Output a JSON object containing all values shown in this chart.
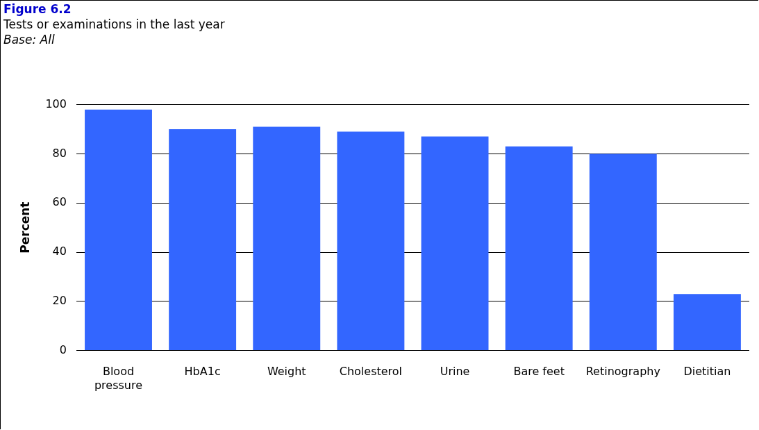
{
  "chart_data": {
    "type": "bar",
    "title": "Figure 6.2",
    "subtitle": "Tests or examinations in the last year",
    "annotations": [
      "Base: All"
    ],
    "ylabel": "Percent",
    "categories": [
      "Blood pressure",
      "HbA1c",
      "Weight",
      "Cholesterol",
      "Urine",
      "Bare feet",
      "Retinography",
      "Dietitian"
    ],
    "values": [
      98,
      90,
      91,
      89,
      87,
      83,
      80,
      23
    ],
    "color": "#3366ff",
    "ylim": [
      0,
      100
    ],
    "yticks": [
      0,
      20,
      40,
      60,
      80,
      100
    ],
    "grid": "y",
    "legend": false
  }
}
